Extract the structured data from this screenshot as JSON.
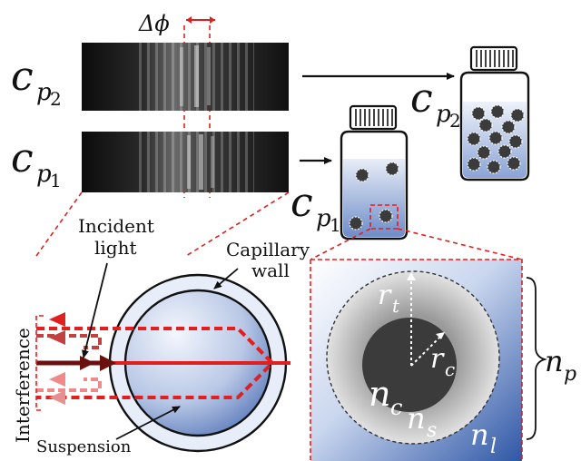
{
  "labels": {
    "delta_phi": "Δϕ",
    "cp2_main": "c",
    "cp2_sub": "p",
    "cp2_subsub": "2",
    "cp1_main": "c",
    "cp1_sub": "p",
    "cp1_subsub": "1",
    "incident_light_line1": "Incident",
    "incident_light_line2": "light",
    "capillary_wall_line1": "Capillary",
    "capillary_wall_line2": "wall",
    "interference": "Interference",
    "suspension": "Suspension",
    "r_t_main": "r",
    "r_t_sub": "t",
    "r_c_main": "r",
    "r_c_sub": "c",
    "n_c_main": "n",
    "n_c_sub": "c",
    "n_s_main": "n",
    "n_s_sub": "s",
    "n_l_main": "n",
    "n_l_sub": "l",
    "n_p_main": "n",
    "n_p_sub": "p"
  },
  "colors": {
    "accent_red": "#e02020",
    "liquid_light": "#dfe8f6",
    "liquid_dark": "#3a5fa8",
    "particle_core": "#3b3b3b",
    "shell_gray": "#c8c8c8",
    "incident_dark": "#6b0f0f",
    "beam_light": "#f08a8a"
  }
}
